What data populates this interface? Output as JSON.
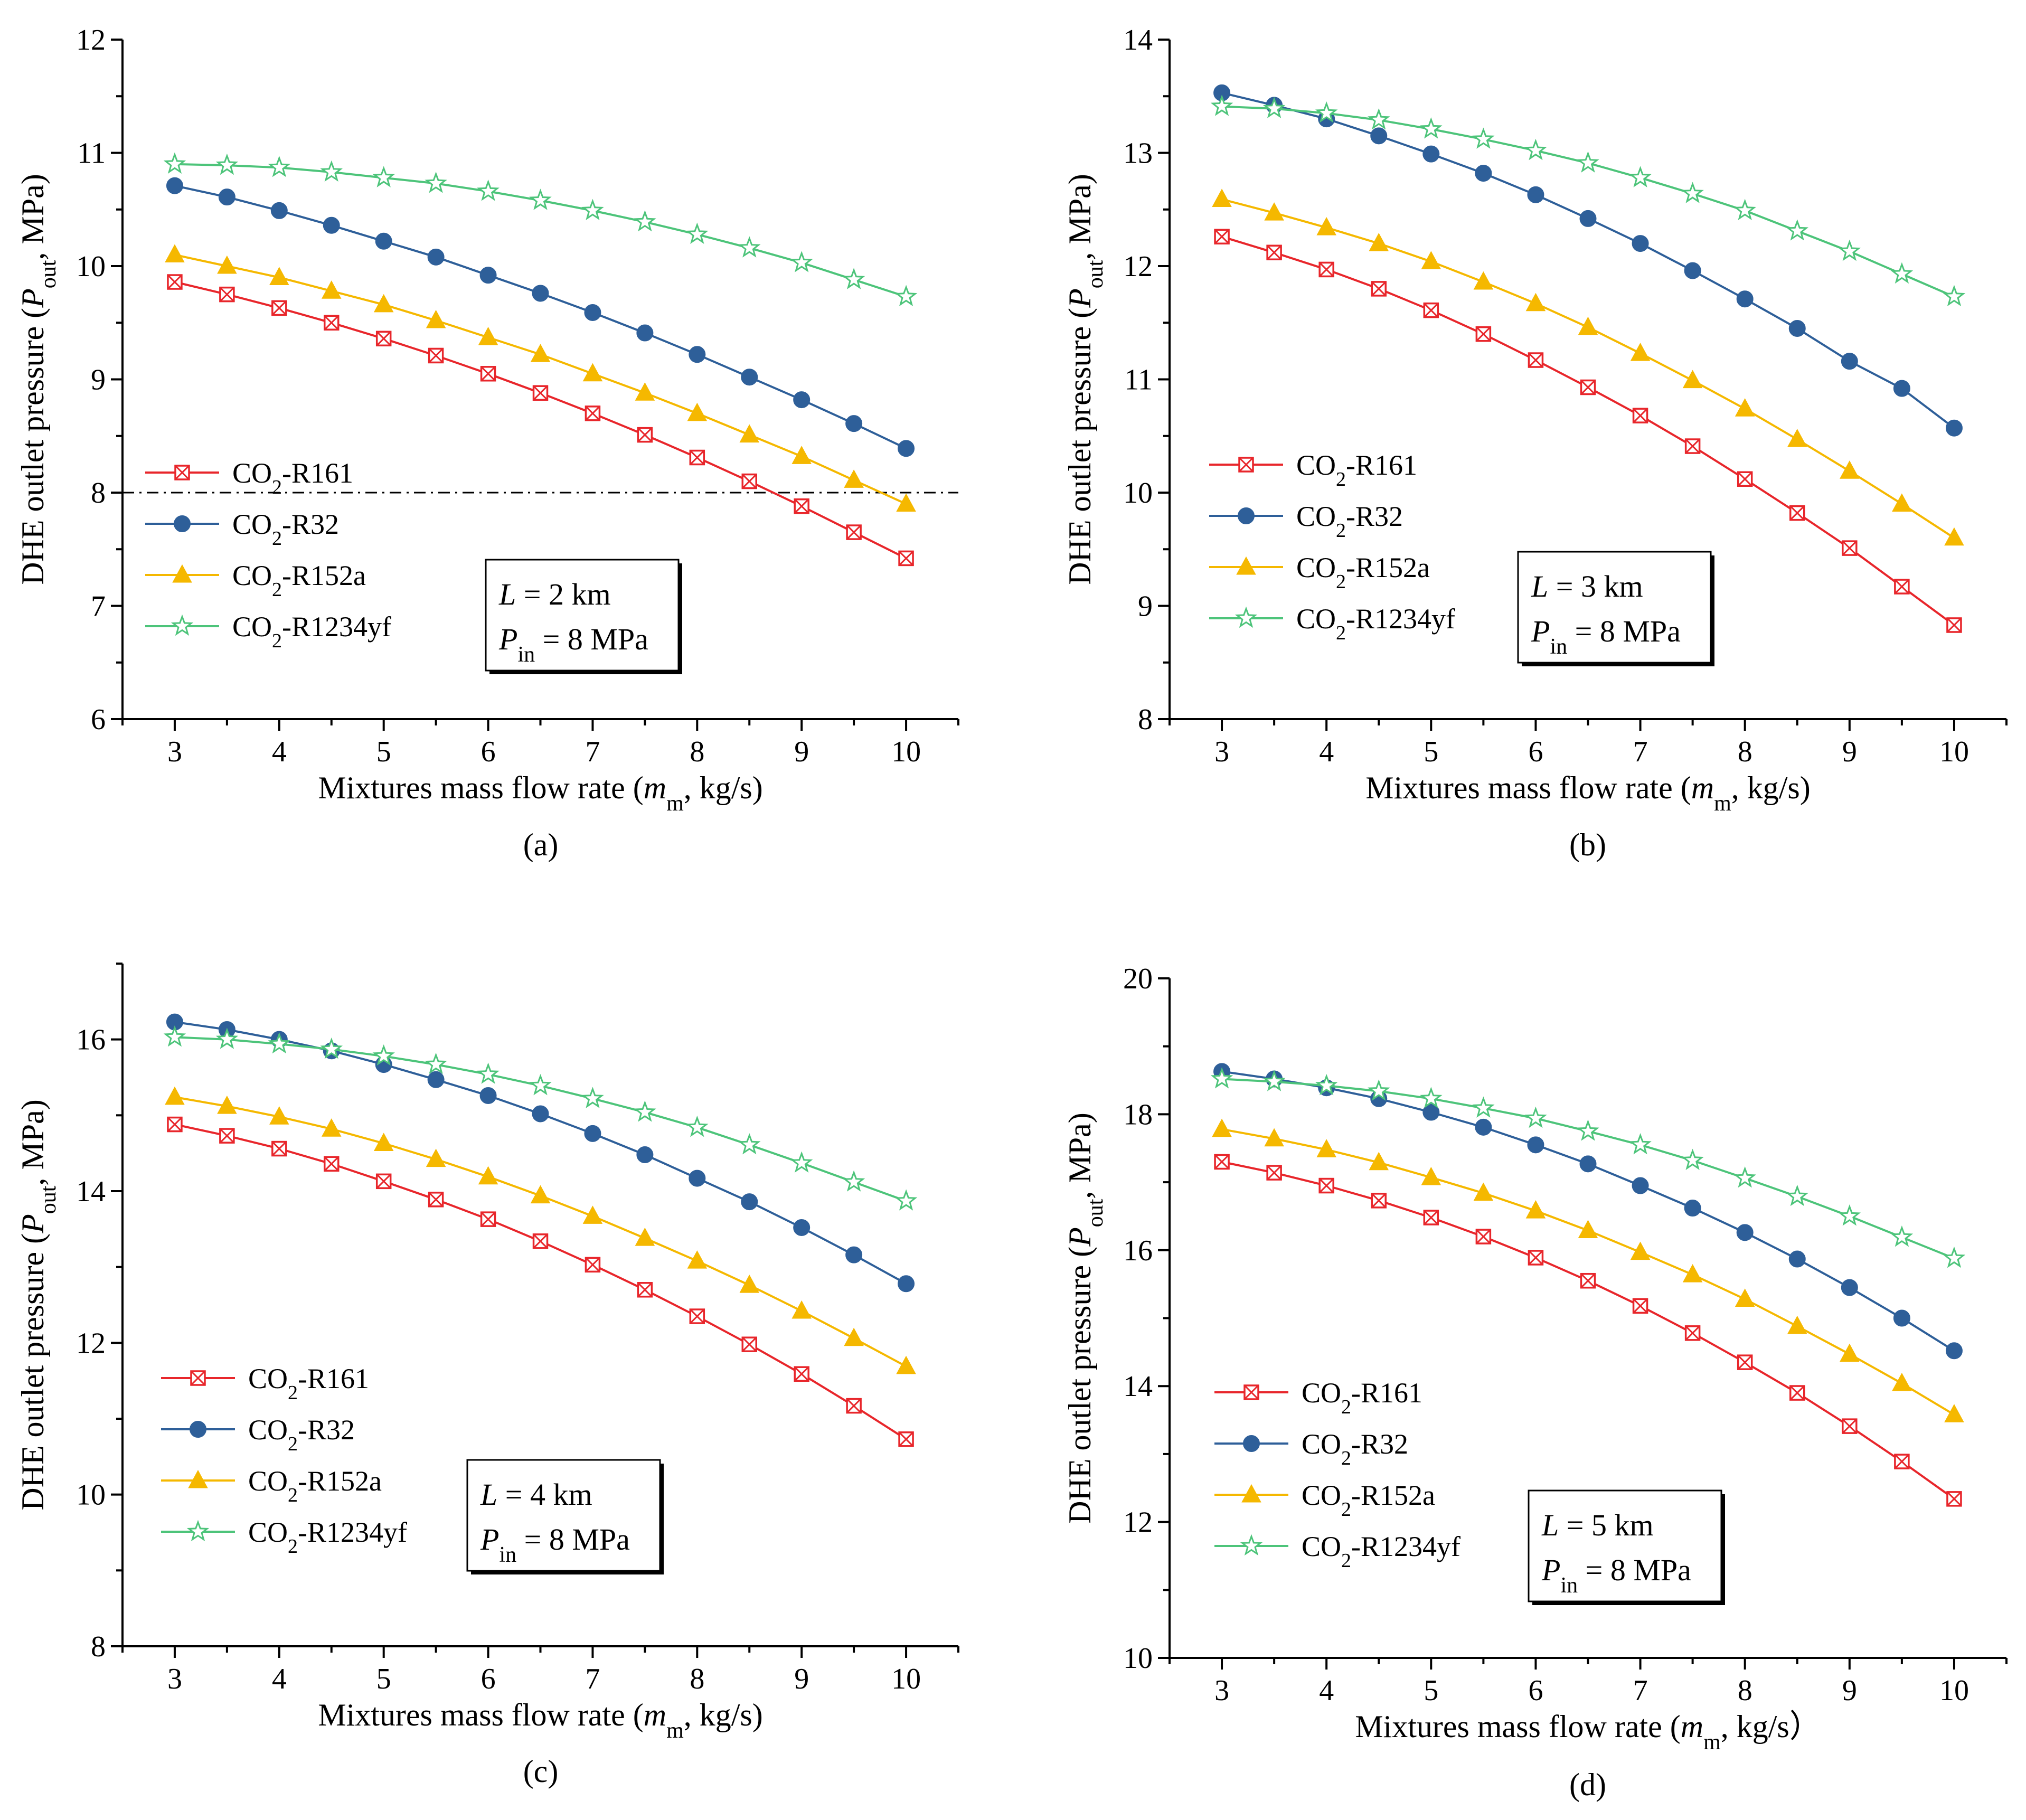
{
  "colors": {
    "CO2-R161": "#e8262b",
    "CO2-R32": "#2e5f99",
    "CO2-R152a": "#f5b800",
    "CO2-R1234yf": "#4dc47a"
  },
  "markers": {
    "CO2-R161": "square-x",
    "CO2-R32": "circle",
    "CO2-R152a": "triangle",
    "CO2-R1234yf": "star"
  },
  "legend_parts": [
    {
      "base": "CO",
      "sub": "2",
      "rest": "-R161"
    },
    {
      "base": "CO",
      "sub": "2",
      "rest": "-R32"
    },
    {
      "base": "CO",
      "sub": "2",
      "rest": "-R152a"
    },
    {
      "base": "CO",
      "sub": "2",
      "rest": "-R1234yf"
    }
  ],
  "chart_data": [
    {
      "type": "line",
      "panel_label": "(a)",
      "xlabel": {
        "pre": "Mixtures mass flow rate (",
        "ital": "m",
        "sub": "m",
        "post": ", kg/s)"
      },
      "ylabel": {
        "pre": "DHE outlet pressure (",
        "ital": "P",
        "sub": "out",
        "post": ", MPa)"
      },
      "xlim": [
        2.5,
        10.5
      ],
      "ylim": [
        6,
        12
      ],
      "xticks": [
        3,
        4,
        5,
        6,
        7,
        8,
        9,
        10
      ],
      "yticks": [
        6,
        7,
        8,
        9,
        10,
        11,
        12
      ],
      "reference_line_y": 8,
      "annotation": {
        "L_value": " = 2 km",
        "P_value": " = 8 MPa",
        "L_sym": "L",
        "P_sym": "P",
        "P_sub": "in"
      },
      "x": [
        3,
        3.5,
        4,
        4.5,
        5,
        5.5,
        6,
        6.5,
        7,
        7.5,
        8,
        8.5,
        9,
        9.5,
        10
      ],
      "series": [
        {
          "key": "CO2-R161",
          "values": [
            9.86,
            9.75,
            9.63,
            9.5,
            9.36,
            9.21,
            9.05,
            8.88,
            8.7,
            8.51,
            8.31,
            8.1,
            7.88,
            7.65,
            7.42
          ]
        },
        {
          "key": "CO2-R32",
          "values": [
            10.71,
            10.61,
            10.49,
            10.36,
            10.22,
            10.08,
            9.92,
            9.76,
            9.59,
            9.41,
            9.22,
            9.02,
            8.82,
            8.61,
            8.39
          ]
        },
        {
          "key": "CO2-R152a",
          "values": [
            10.1,
            10.0,
            9.9,
            9.78,
            9.66,
            9.52,
            9.37,
            9.22,
            9.05,
            8.88,
            8.7,
            8.51,
            8.32,
            8.11,
            7.9
          ]
        },
        {
          "key": "CO2-R1234yf",
          "values": [
            10.9,
            10.89,
            10.87,
            10.83,
            10.78,
            10.73,
            10.66,
            10.58,
            10.49,
            10.39,
            10.28,
            10.16,
            10.03,
            9.88,
            9.73
          ]
        }
      ]
    },
    {
      "type": "line",
      "panel_label": "(b)",
      "xlabel": {
        "pre": "Mixtures mass flow rate (",
        "ital": "m",
        "sub": "m",
        "post": ", kg/s)"
      },
      "ylabel": {
        "pre": "DHE outlet pressure (",
        "ital": "P",
        "sub": "out",
        "post": ", MPa)"
      },
      "xlim": [
        2.5,
        10.5
      ],
      "ylim": [
        8,
        14
      ],
      "xticks": [
        3,
        4,
        5,
        6,
        7,
        8,
        9,
        10
      ],
      "yticks": [
        8,
        9,
        10,
        11,
        12,
        13,
        14
      ],
      "annotation": {
        "L_value": " = 3 km",
        "P_value": " = 8 MPa",
        "L_sym": "L",
        "P_sym": "P",
        "P_sub": "in"
      },
      "x": [
        3,
        3.5,
        4,
        4.5,
        5,
        5.5,
        6,
        6.5,
        7,
        7.5,
        8,
        8.5,
        9,
        9.5,
        10
      ],
      "series": [
        {
          "key": "CO2-R161",
          "values": [
            12.26,
            12.12,
            11.97,
            11.8,
            11.61,
            11.4,
            11.17,
            10.93,
            10.68,
            10.41,
            10.12,
            9.82,
            9.51,
            9.17,
            8.83
          ]
        },
        {
          "key": "CO2-R32",
          "values": [
            13.53,
            13.42,
            13.3,
            13.15,
            12.99,
            12.82,
            12.63,
            12.42,
            12.2,
            11.96,
            11.71,
            11.45,
            11.16,
            10.92,
            10.57
          ]
        },
        {
          "key": "CO2-R152a",
          "values": [
            12.59,
            12.47,
            12.34,
            12.2,
            12.04,
            11.86,
            11.67,
            11.46,
            11.23,
            10.99,
            10.74,
            10.47,
            10.19,
            9.9,
            9.6
          ]
        },
        {
          "key": "CO2-R1234yf",
          "values": [
            13.41,
            13.39,
            13.35,
            13.29,
            13.21,
            13.12,
            13.02,
            12.91,
            12.78,
            12.64,
            12.49,
            12.31,
            12.13,
            11.93,
            11.73
          ]
        }
      ]
    },
    {
      "type": "line",
      "panel_label": "(c)",
      "xlabel": {
        "pre": "Mixtures mass flow rate (",
        "ital": "m",
        "sub": "m",
        "post": ", kg/s)"
      },
      "ylabel": {
        "pre": "DHE outlet pressure (",
        "ital": "P",
        "sub": "out",
        "post": ", MPa)"
      },
      "xlim": [
        2.5,
        10.5
      ],
      "ylim": [
        8,
        17
      ],
      "xticks": [
        3,
        4,
        5,
        6,
        7,
        8,
        9,
        10
      ],
      "yticks": [
        8,
        10,
        12,
        14,
        16
      ],
      "annotation": {
        "L_value": " = 4 km",
        "P_value": " = 8 MPa",
        "L_sym": "L",
        "P_sym": "P",
        "P_sub": "in"
      },
      "x": [
        3,
        3.5,
        4,
        4.5,
        5,
        5.5,
        6,
        6.5,
        7,
        7.5,
        8,
        8.5,
        9,
        9.5,
        10
      ],
      "series": [
        {
          "key": "CO2-R161",
          "values": [
            14.88,
            14.73,
            14.56,
            14.36,
            14.13,
            13.89,
            13.63,
            13.34,
            13.03,
            12.7,
            12.35,
            11.98,
            11.59,
            11.17,
            10.73
          ]
        },
        {
          "key": "CO2-R32",
          "values": [
            16.23,
            16.13,
            16.0,
            15.85,
            15.67,
            15.47,
            15.26,
            15.02,
            14.76,
            14.48,
            14.17,
            13.86,
            13.52,
            13.16,
            12.78
          ]
        },
        {
          "key": "CO2-R152a",
          "values": [
            15.24,
            15.12,
            14.98,
            14.82,
            14.63,
            14.42,
            14.19,
            13.94,
            13.67,
            13.38,
            13.08,
            12.76,
            12.42,
            12.06,
            11.69
          ]
        },
        {
          "key": "CO2-R1234yf",
          "values": [
            16.03,
            16.0,
            15.94,
            15.87,
            15.78,
            15.67,
            15.54,
            15.39,
            15.22,
            15.04,
            14.84,
            14.61,
            14.37,
            14.12,
            13.87
          ]
        }
      ]
    },
    {
      "type": "line",
      "panel_label": "(d)",
      "xlabel": {
        "pre": "Mixtures mass flow rate (",
        "ital": "m",
        "sub": "m",
        "post": ", kg/s）"
      },
      "ylabel": {
        "pre": "DHE outlet pressure (",
        "ital": "P",
        "sub": "out",
        "post": ", MPa)"
      },
      "xlim": [
        2.5,
        10.5
      ],
      "ylim": [
        10,
        20
      ],
      "xticks": [
        3,
        4,
        5,
        6,
        7,
        8,
        9,
        10
      ],
      "yticks": [
        10,
        12,
        14,
        16,
        18,
        20
      ],
      "annotation": {
        "L_value": " = 5 km",
        "P_value": " = 8 MPa",
        "L_sym": "L",
        "P_sym": "P",
        "P_sub": "in"
      },
      "x": [
        3,
        3.5,
        4,
        4.5,
        5,
        5.5,
        6,
        6.5,
        7,
        7.5,
        8,
        8.5,
        9,
        9.5,
        10
      ],
      "series": [
        {
          "key": "CO2-R161",
          "values": [
            17.3,
            17.14,
            16.95,
            16.73,
            16.48,
            16.2,
            15.89,
            15.55,
            15.18,
            14.78,
            14.35,
            13.9,
            13.41,
            12.89,
            12.34
          ]
        },
        {
          "key": "CO2-R32",
          "values": [
            18.63,
            18.52,
            18.39,
            18.23,
            18.03,
            17.81,
            17.55,
            17.27,
            16.95,
            16.62,
            16.26,
            15.87,
            15.45,
            15.0,
            14.52
          ]
        },
        {
          "key": "CO2-R152a",
          "values": [
            17.78,
            17.64,
            17.48,
            17.29,
            17.07,
            16.84,
            16.58,
            16.29,
            15.97,
            15.64,
            15.28,
            14.88,
            14.47,
            14.04,
            13.58
          ]
        },
        {
          "key": "CO2-R1234yf",
          "values": [
            18.52,
            18.48,
            18.42,
            18.34,
            18.23,
            18.09,
            17.94,
            17.75,
            17.55,
            17.32,
            17.06,
            16.79,
            16.5,
            16.19,
            15.88
          ]
        }
      ]
    }
  ]
}
